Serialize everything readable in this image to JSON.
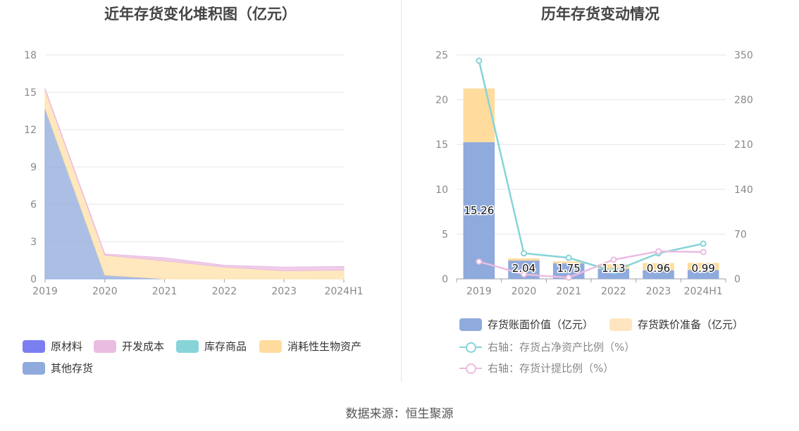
{
  "source_text": "数据来源：恒生聚源",
  "chart_data": [
    {
      "type": "area",
      "title": "近年存货变化堆积图（亿元）",
      "x": [
        "2019",
        "2020",
        "2021",
        "2022",
        "2023",
        "2024H1"
      ],
      "y_ticks": [
        0,
        3,
        6,
        9,
        12,
        15,
        18
      ],
      "ylim": [
        0,
        18
      ],
      "stacked": true,
      "grid": true,
      "legend_position": "bottom-left",
      "series": [
        {
          "name": "其他存货",
          "color": "#8faadc",
          "values": [
            13.7,
            0.3,
            0.0,
            0.0,
            0.0,
            0.0
          ]
        },
        {
          "name": "消耗性生物资产",
          "color": "#ffe0a8",
          "values": [
            1.5,
            1.6,
            1.45,
            0.95,
            0.65,
            0.7
          ]
        },
        {
          "name": "库存商品",
          "color": "#86d4d8",
          "values": [
            0.0,
            0.0,
            0.0,
            0.0,
            0.0,
            0.0
          ]
        },
        {
          "name": "开发成本",
          "color": "#eabce2",
          "values": [
            0.1,
            0.1,
            0.25,
            0.15,
            0.3,
            0.3
          ]
        },
        {
          "name": "原材料",
          "color": "#7b7ef0",
          "values": [
            0.0,
            0.0,
            0.0,
            0.0,
            0.0,
            0.0
          ]
        }
      ],
      "legend_order": [
        "原材料",
        "开发成本",
        "库存商品",
        "消耗性生物资产",
        "其他存货"
      ]
    },
    {
      "type": "bar",
      "title": "历年存货变动情况",
      "x": [
        "2019",
        "2020",
        "2021",
        "2022",
        "2023",
        "2024H1"
      ],
      "y_ticks": [
        0,
        5,
        10,
        15,
        20,
        25
      ],
      "ylim": [
        0,
        25
      ],
      "y2_ticks": [
        0,
        70,
        140,
        210,
        280,
        350
      ],
      "y2lim": [
        0,
        350
      ],
      "grid": true,
      "legend_position": "bottom",
      "bar_series": [
        {
          "name": "存货账面价值（亿元）",
          "color": "#8faadc",
          "values": [
            15.26,
            2.04,
            1.75,
            1.13,
            0.96,
            0.99
          ],
          "labels": [
            "15.26",
            "2.04",
            "1.75",
            "1.13",
            "0.96",
            "0.99"
          ]
        },
        {
          "name": "存货跌价准备（亿元）",
          "color": "#ffdc9e",
          "values": [
            6.0,
            0.25,
            0.2,
            0.5,
            0.8,
            0.8
          ]
        }
      ],
      "line_series": [
        {
          "name": "右轴：存货占净资产比例（%）",
          "color": "#86d4d8",
          "values": [
            341,
            40,
            33,
            12,
            40,
            55
          ]
        },
        {
          "name": "右轴：存货计提比例（%）",
          "color": "#eabce2",
          "values": [
            27,
            7,
            2,
            30,
            43,
            42
          ]
        }
      ]
    }
  ]
}
